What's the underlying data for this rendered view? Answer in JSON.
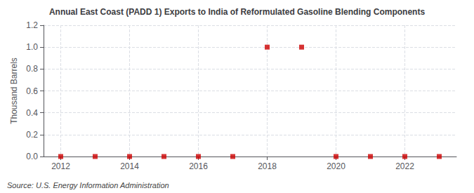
{
  "chart_data": {
    "type": "scatter",
    "title": "Annual East Coast (PADD 1) Exports to India of Reformulated Gasoline Blending Components",
    "ylabel": "Thousand Barrels",
    "annotation": "Source: U.S. Energy Information Administration",
    "x": [
      2012,
      2013,
      2014,
      2015,
      2016,
      2017,
      2018,
      2019,
      2020,
      2021,
      2022,
      2023
    ],
    "values": [
      0.0,
      0.0,
      0.0,
      0.0,
      0.0,
      0.0,
      1.0,
      1.0,
      0.0,
      0.0,
      0.0,
      0.0
    ],
    "color": "#cc0000",
    "marker": "square",
    "xlim": [
      2011.5,
      2023.5
    ],
    "xticks": [
      2012,
      2014,
      2016,
      2018,
      2020,
      2022
    ],
    "ylim": [
      0.0,
      1.2
    ],
    "yticks": [
      {
        "value": 0.0,
        "label": "0.0"
      },
      {
        "value": 0.2,
        "label": "0.2"
      },
      {
        "value": 0.4,
        "label": "0.4"
      },
      {
        "value": 0.6,
        "label": "0.6"
      },
      {
        "value": 0.8,
        "label": "0.8"
      },
      {
        "value": 1.0,
        "label": "1.0"
      },
      {
        "value": 1.2,
        "label": "1.2"
      }
    ],
    "grid": true
  }
}
